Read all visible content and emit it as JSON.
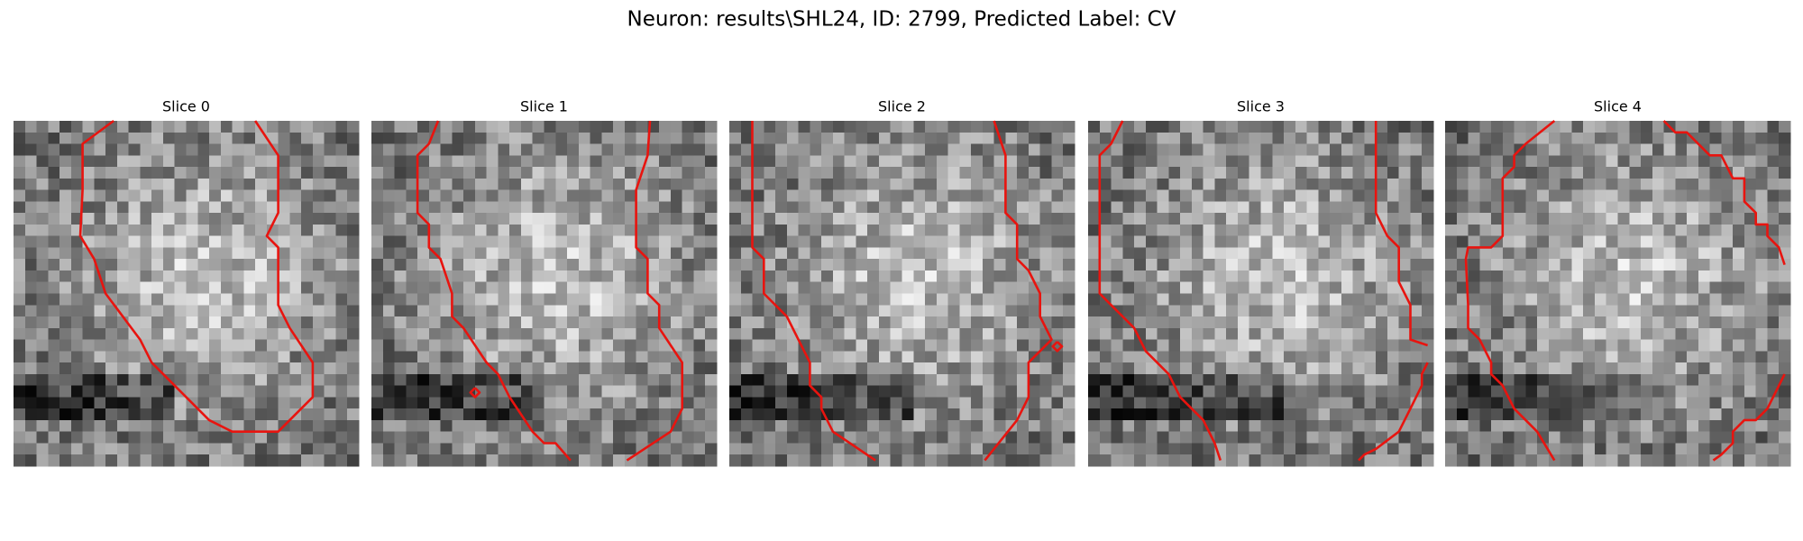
{
  "title": "Neuron: results\\SHL24, ID: 2799, Predicted Label: CV",
  "panels": [
    {
      "title": "Slice 0"
    },
    {
      "title": "Slice 1"
    },
    {
      "title": "Slice 2"
    },
    {
      "title": "Slice 3"
    },
    {
      "title": "Slice 4"
    }
  ]
}
